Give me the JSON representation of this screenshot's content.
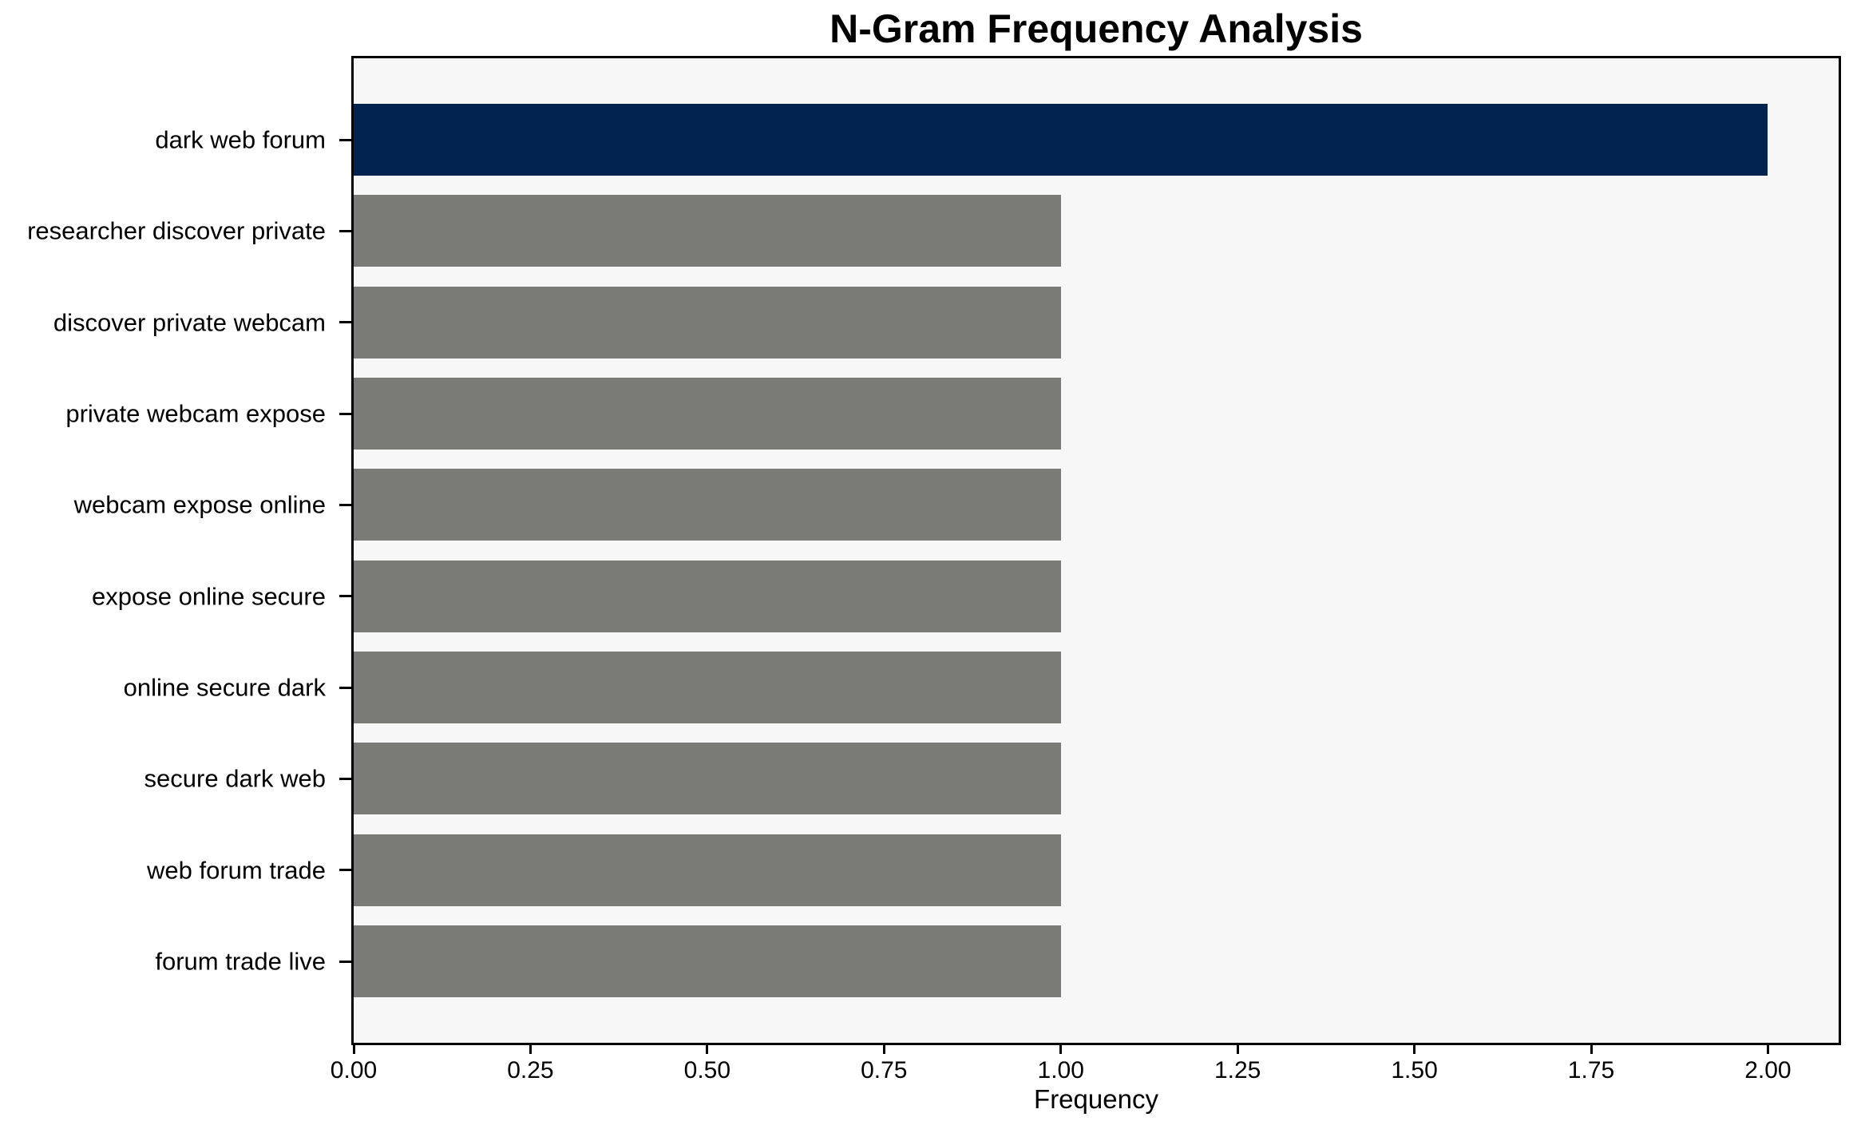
{
  "chart_data": {
    "type": "bar",
    "orientation": "horizontal",
    "title": "N-Gram Frequency Analysis",
    "xlabel": "Frequency",
    "ylabel": "",
    "categories": [
      "dark web forum",
      "researcher discover private",
      "discover private webcam",
      "private webcam expose",
      "webcam expose online",
      "expose online secure",
      "online secure dark",
      "secure dark web",
      "web forum trade",
      "forum trade live"
    ],
    "values": [
      2,
      1,
      1,
      1,
      1,
      1,
      1,
      1,
      1,
      1
    ],
    "bar_colors": [
      "#02234e",
      "#7a7a77",
      "#7a7a77",
      "#7a7a77",
      "#7a7a77",
      "#7a7a77",
      "#7a7a77",
      "#7a7a77",
      "#7a7a77",
      "#7a7a77"
    ],
    "highlight_color": "#02234e",
    "default_bar_color": "#7a7a77",
    "xlim": [
      0,
      2.1
    ],
    "x_ticks": [
      {
        "value": 0.0,
        "label": "0.00"
      },
      {
        "value": 0.25,
        "label": "0.25"
      },
      {
        "value": 0.5,
        "label": "0.50"
      },
      {
        "value": 0.75,
        "label": "0.75"
      },
      {
        "value": 1.0,
        "label": "1.00"
      },
      {
        "value": 1.25,
        "label": "1.25"
      },
      {
        "value": 1.5,
        "label": "1.50"
      },
      {
        "value": 1.75,
        "label": "1.75"
      },
      {
        "value": 2.0,
        "label": "2.00"
      }
    ],
    "grid": false,
    "legend": null,
    "plot_bg_color": "#f7f7f7",
    "figure_bg_color": "#ffffff",
    "spine_color": "#000000"
  }
}
